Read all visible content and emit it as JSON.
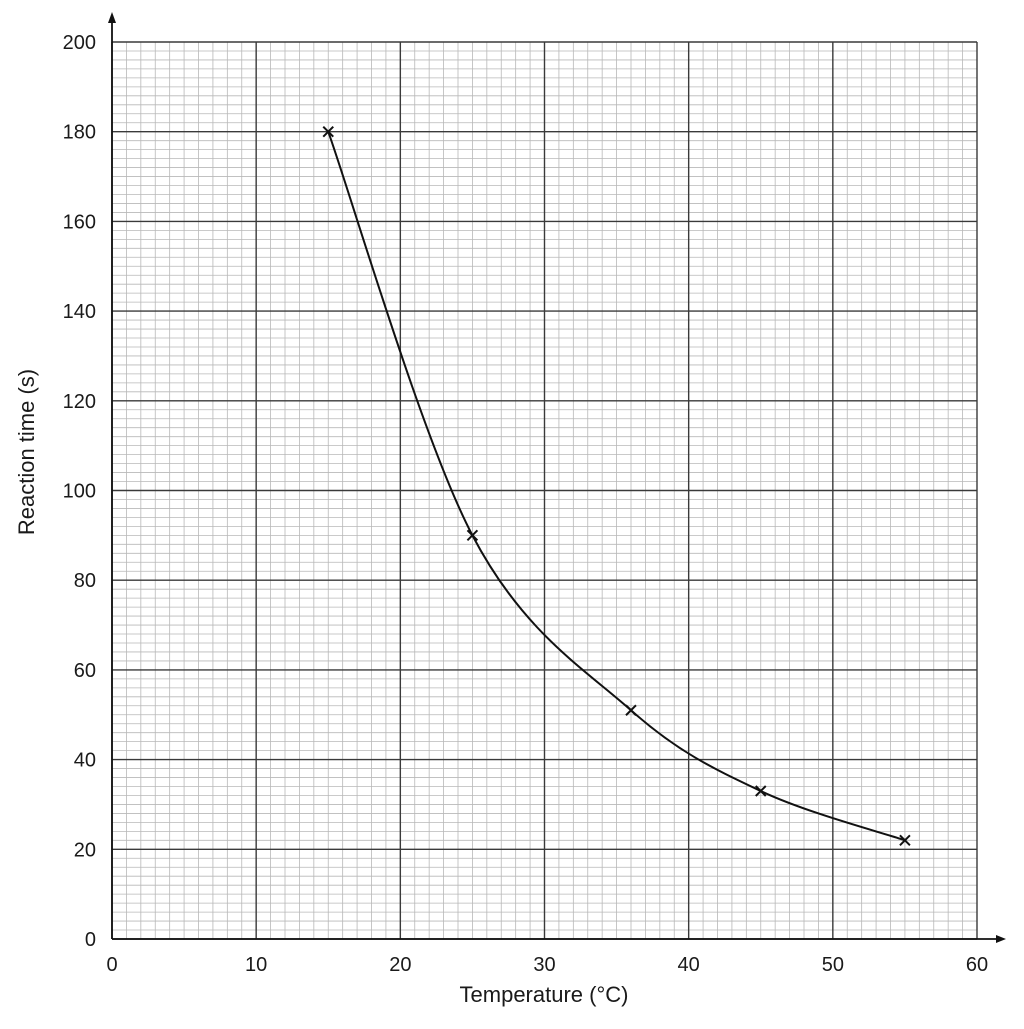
{
  "chart_data": {
    "type": "line",
    "title": "",
    "xlabel": "Temperature (°C)",
    "ylabel": "Reaction time (s)",
    "xlim": [
      0,
      60
    ],
    "ylim": [
      0,
      200
    ],
    "x_ticks": [
      "0",
      "10",
      "20",
      "30",
      "40",
      "50",
      "60"
    ],
    "y_ticks": [
      "0",
      "20",
      "40",
      "60",
      "80",
      "100",
      "120",
      "140",
      "160",
      "180",
      "200"
    ],
    "grid": true,
    "grid_minor_divisions": 10,
    "marker": "x",
    "smooth_curve": true,
    "series": [
      {
        "x": [
          15,
          25,
          36,
          45,
          55
        ],
        "y": [
          180,
          90,
          51,
          33,
          22
        ]
      }
    ],
    "colors": {
      "major_grid": "#3a3a3a",
      "minor_grid": "#b8b8b8",
      "axis": "#111111",
      "line": "#111111"
    }
  }
}
